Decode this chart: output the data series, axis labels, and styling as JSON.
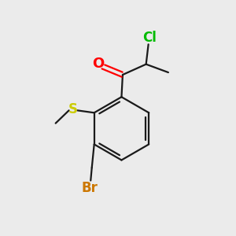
{
  "bg_color": "#ebebeb",
  "bond_color": "#1a1a1a",
  "atom_colors": {
    "O": "#ff0000",
    "S": "#cccc00",
    "Cl": "#00bb00",
    "Br": "#cc7700",
    "C": "#1a1a1a"
  },
  "font_size_atoms": 12,
  "font_size_small": 10,
  "line_width": 1.6
}
